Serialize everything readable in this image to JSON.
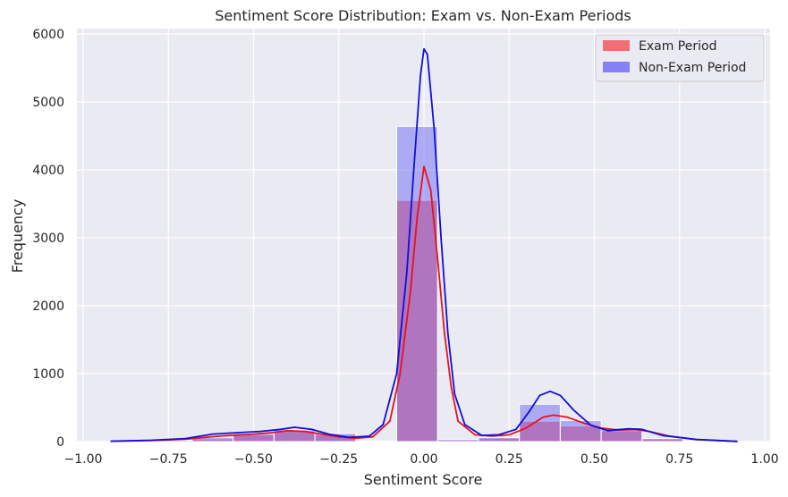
{
  "chart_data": {
    "type": "bar",
    "title": "Sentiment Score Distribution: Exam vs. Non-Exam Periods",
    "xlabel": "Sentiment Score",
    "ylabel": "Frequency",
    "xlim": [
      -1.0,
      1.0
    ],
    "ylim": [
      0,
      6000
    ],
    "xticks": [
      -1.0,
      -0.75,
      -0.5,
      -0.25,
      0.0,
      0.25,
      0.5,
      0.75,
      1.0
    ],
    "xtick_labels": [
      "−1.00",
      "−0.75",
      "−0.50",
      "−0.25",
      "0.00",
      "0.25",
      "0.50",
      "0.75",
      "1.00"
    ],
    "yticks": [
      0,
      1000,
      2000,
      3000,
      4000,
      5000,
      6000
    ],
    "ytick_labels": [
      "0",
      "1000",
      "2000",
      "3000",
      "4000",
      "5000",
      "6000"
    ],
    "grid": true,
    "legend_position": "top-right",
    "bin_edges": [
      -0.92,
      -0.8,
      -0.68,
      -0.56,
      -0.44,
      -0.32,
      -0.2,
      -0.08,
      0.04,
      0.16,
      0.28,
      0.4,
      0.52,
      0.64,
      0.76,
      0.92
    ],
    "series": [
      {
        "name": "Exam Period",
        "color": "#f0595f",
        "kde_color": "#e8111b",
        "values": [
          5,
          15,
          40,
          100,
          150,
          100,
          5,
          3550,
          25,
          50,
          300,
          230,
          160,
          40,
          5
        ],
        "kde": [
          [
            -0.92,
            5
          ],
          [
            -0.8,
            15
          ],
          [
            -0.7,
            35
          ],
          [
            -0.6,
            80
          ],
          [
            -0.5,
            110
          ],
          [
            -0.45,
            130
          ],
          [
            -0.4,
            160
          ],
          [
            -0.35,
            150
          ],
          [
            -0.3,
            110
          ],
          [
            -0.25,
            70
          ],
          [
            -0.2,
            50
          ],
          [
            -0.15,
            70
          ],
          [
            -0.1,
            300
          ],
          [
            -0.07,
            1000
          ],
          [
            -0.04,
            2200
          ],
          [
            -0.02,
            3300
          ],
          [
            0.0,
            4050
          ],
          [
            0.02,
            3700
          ],
          [
            0.04,
            2700
          ],
          [
            0.06,
            1600
          ],
          [
            0.08,
            800
          ],
          [
            0.1,
            300
          ],
          [
            0.15,
            100
          ],
          [
            0.2,
            80
          ],
          [
            0.25,
            100
          ],
          [
            0.3,
            200
          ],
          [
            0.35,
            360
          ],
          [
            0.38,
            390
          ],
          [
            0.42,
            360
          ],
          [
            0.47,
            270
          ],
          [
            0.52,
            200
          ],
          [
            0.57,
            170
          ],
          [
            0.62,
            180
          ],
          [
            0.66,
            150
          ],
          [
            0.72,
            80
          ],
          [
            0.8,
            30
          ],
          [
            0.92,
            3
          ]
        ]
      },
      {
        "name": "Non-Exam Period",
        "color": "#7a74f5",
        "kde_color": "#0f0fdc",
        "values": [
          8,
          20,
          60,
          120,
          170,
          120,
          8,
          4640,
          30,
          60,
          550,
          310,
          200,
          45,
          8
        ],
        "kde": [
          [
            -0.92,
            5
          ],
          [
            -0.8,
            20
          ],
          [
            -0.7,
            45
          ],
          [
            -0.62,
            110
          ],
          [
            -0.55,
            130
          ],
          [
            -0.48,
            150
          ],
          [
            -0.42,
            180
          ],
          [
            -0.38,
            210
          ],
          [
            -0.33,
            180
          ],
          [
            -0.28,
            110
          ],
          [
            -0.22,
            60
          ],
          [
            -0.16,
            80
          ],
          [
            -0.12,
            250
          ],
          [
            -0.08,
            1000
          ],
          [
            -0.05,
            2500
          ],
          [
            -0.03,
            4000
          ],
          [
            -0.01,
            5400
          ],
          [
            0.0,
            5780
          ],
          [
            0.01,
            5700
          ],
          [
            0.03,
            4600
          ],
          [
            0.05,
            3000
          ],
          [
            0.07,
            1600
          ],
          [
            0.09,
            700
          ],
          [
            0.12,
            250
          ],
          [
            0.17,
            90
          ],
          [
            0.22,
            100
          ],
          [
            0.27,
            180
          ],
          [
            0.31,
            450
          ],
          [
            0.34,
            680
          ],
          [
            0.37,
            740
          ],
          [
            0.4,
            680
          ],
          [
            0.44,
            460
          ],
          [
            0.49,
            240
          ],
          [
            0.54,
            160
          ],
          [
            0.6,
            190
          ],
          [
            0.64,
            180
          ],
          [
            0.7,
            90
          ],
          [
            0.8,
            30
          ],
          [
            0.92,
            3
          ]
        ]
      }
    ]
  }
}
